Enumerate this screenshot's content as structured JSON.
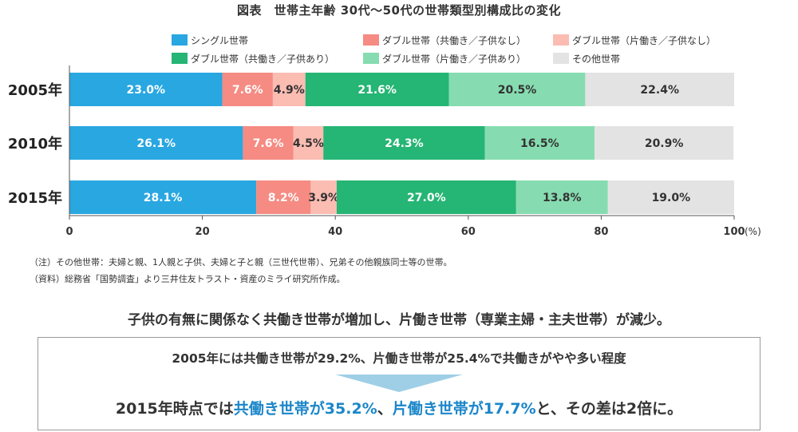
{
  "title": "図表　世帯主年齢 30代～50代の世帯類型別構成比の変化",
  "colors": {
    "single": "#29a7e1",
    "double_both_nokids": "#f58b82",
    "double_one_nokids": "#fbbcb2",
    "double_both_kids": "#25b574",
    "double_one_kids": "#86dcb0",
    "other": "#e3e3e3",
    "highlight": "#1b86c9",
    "arrow": "#9fcfe6"
  },
  "notes": {
    "note1": "（注）その他世帯：夫婦と親、1人親と子供、夫婦と子と親（三世代世帯）、兄弟その他親族同士等の世帯。",
    "note2": "（資料）総務省「国勢調査」より三井住友トラスト・資産のミライ研究所作成。"
  },
  "summary": {
    "headline": "子供の有無に関係なく共働き世帯が増加し、片働き世帯（専業主婦・主夫世帯）が減少。",
    "line1": "2005年には共働き世帯が29.2%、片働き世帯が25.4%で共働きがやや多い程度",
    "line2_prefix": "2015年時点では",
    "line2_hl1": "共働き世帯が35.2%",
    "line2_mid": "、",
    "line2_hl2": "片働き世帯が17.7%",
    "line2_suffix": "と、その差は2倍に。"
  },
  "chart_data": {
    "type": "bar",
    "orientation": "horizontal",
    "stacked": true,
    "title": "図表　世帯主年齢 30代～50代の世帯類型別構成比の変化",
    "categories": [
      "2005年",
      "2010年",
      "2015年"
    ],
    "xlim": [
      0,
      100
    ],
    "x_ticks": [
      "0",
      "20",
      "40",
      "60",
      "80",
      "100"
    ],
    "x_unit": "(%)",
    "legend_position": "top",
    "series": [
      {
        "name": "シングル世帯",
        "values": [
          23.0,
          26.1,
          28.1
        ],
        "labels": [
          "23.0%",
          "26.1%",
          "28.1%"
        ]
      },
      {
        "name": "ダブル世帯（共働き／子供なし）",
        "values": [
          7.6,
          7.6,
          8.2
        ],
        "labels": [
          "7.6%",
          "7.6%",
          "8.2%"
        ]
      },
      {
        "name": "ダブル世帯（片働き／子供なし）",
        "values": [
          4.9,
          4.5,
          3.9
        ],
        "labels": [
          "4.9%",
          "4.5%",
          "3.9%"
        ]
      },
      {
        "name": "ダブル世帯（共働き／子供あり）",
        "values": [
          21.6,
          24.3,
          27.0
        ],
        "labels": [
          "21.6%",
          "24.3%",
          "27.0%"
        ]
      },
      {
        "name": "ダブル世帯（片働き／子供あり）",
        "values": [
          20.5,
          16.5,
          13.8
        ],
        "labels": [
          "20.5%",
          "16.5%",
          "13.8%"
        ]
      },
      {
        "name": "その他世帯",
        "values": [
          22.4,
          20.9,
          19.0
        ],
        "labels": [
          "22.4%",
          "20.9%",
          "19.0%"
        ]
      }
    ]
  }
}
